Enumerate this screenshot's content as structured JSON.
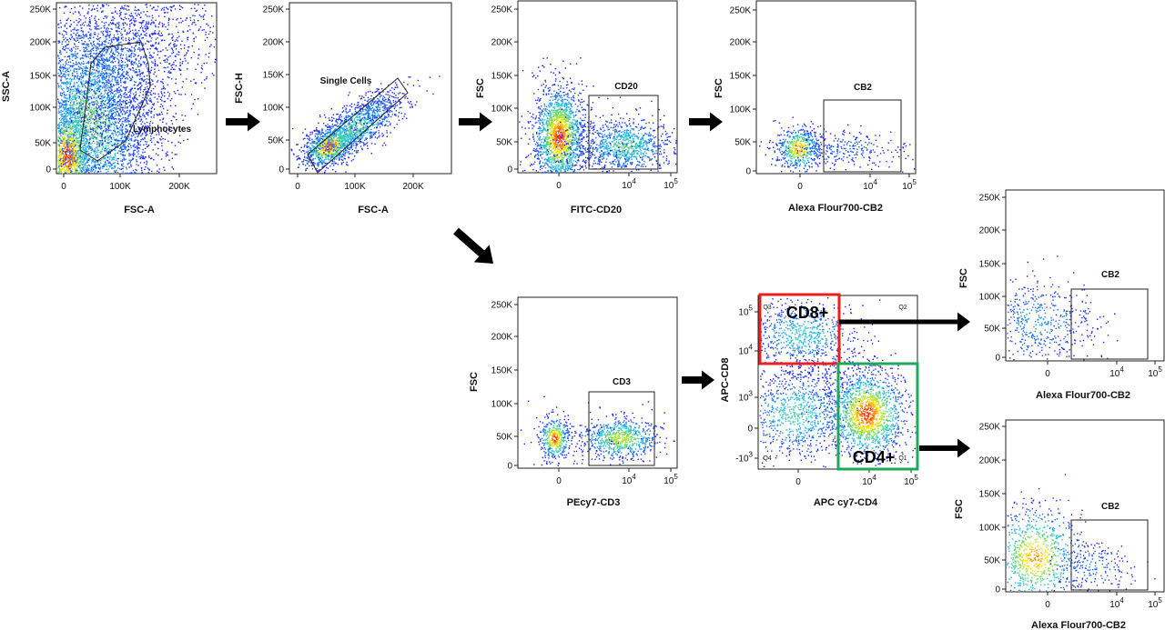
{
  "colors": {
    "density_low": "#1a1aff",
    "density_mid": "#22c3e6",
    "density_high": "#ffea00",
    "density_peak": "#ff2a00",
    "cd8_box": "#e8211d",
    "cd4_box": "#1fa85a",
    "arrow": "#000000"
  },
  "chart_data": [
    {
      "type": "scatter",
      "id": "lymph",
      "xlabel": "FSC-A",
      "ylabel": "SSC-A",
      "xticks": [
        "0",
        "100K",
        "200K"
      ],
      "yticks": [
        "0",
        "50K",
        "100K",
        "150K",
        "200K",
        "250K"
      ],
      "gate_labels": [
        "Lymphocytes"
      ]
    },
    {
      "type": "scatter",
      "id": "singlets",
      "xlabel": "FSC-A",
      "ylabel": "FSC-H",
      "xticks": [
        "0",
        "100K",
        "200K"
      ],
      "yticks": [
        "0",
        "50K",
        "100K",
        "150K",
        "200K",
        "250K"
      ],
      "gate_labels": [
        "Single Cells"
      ]
    },
    {
      "type": "scatter",
      "id": "cd20",
      "xlabel": "FITC-CD20",
      "ylabel": "FSC",
      "xticks": [
        "0",
        "10^4",
        "10^5"
      ],
      "yticks": [
        "0",
        "50K",
        "100K",
        "150K",
        "200K",
        "250K"
      ],
      "gate_labels": [
        "CD20"
      ]
    },
    {
      "type": "scatter",
      "id": "cb2_top",
      "xlabel": "Alexa Flour700-CB2",
      "ylabel": "FSC",
      "xticks": [
        "0",
        "10^4",
        "10^5"
      ],
      "yticks": [
        "0",
        "50K",
        "100K",
        "150K",
        "200K",
        "250K"
      ],
      "gate_labels": [
        "CB2"
      ]
    },
    {
      "type": "scatter",
      "id": "cd3",
      "xlabel": "PEcy7-CD3",
      "ylabel": "FSC",
      "xticks": [
        "0",
        "10^4",
        "10^5"
      ],
      "yticks": [
        "0",
        "50K",
        "100K",
        "150K",
        "200K",
        "250K"
      ],
      "gate_labels": [
        "CD3"
      ]
    },
    {
      "type": "scatter",
      "id": "cd4cd8",
      "xlabel": "APC cy7-CD4",
      "ylabel": "APC-CD8",
      "xticks": [
        "0",
        "10^4",
        "10^5"
      ],
      "yticks": [
        "-10^3",
        "0",
        "10^3",
        "10^4",
        "10^5"
      ],
      "gate_labels": [
        "CD8+",
        "CD4+"
      ],
      "quadrants": [
        "Q1",
        "Q2",
        "Q3",
        "Q4"
      ]
    },
    {
      "type": "scatter",
      "id": "cb2_cd8",
      "xlabel": "Alexa Flour700-CB2",
      "ylabel": "FSC",
      "xticks": [
        "0",
        "10^4",
        "10^5"
      ],
      "yticks": [
        "0",
        "50K",
        "100K",
        "150K",
        "200K",
        "250K"
      ],
      "gate_labels": [
        "CB2"
      ]
    },
    {
      "type": "scatter",
      "id": "cb2_cd4",
      "xlabel": "Alexa Flour700-CB2",
      "ylabel": "FSC",
      "xticks": [
        "0",
        "10^4",
        "10^5"
      ],
      "yticks": [
        "0",
        "50K",
        "100K",
        "150K",
        "200K",
        "250K"
      ],
      "gate_labels": [
        "CB2"
      ]
    }
  ]
}
